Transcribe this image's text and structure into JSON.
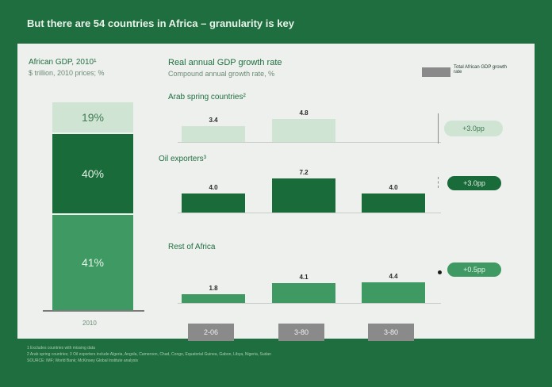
{
  "header": {
    "title": "But there are 54 countries in Africa – granularity is key"
  },
  "left_chart": {
    "title": "African GDP, 2010¹",
    "subtitle": "$ trillion, 2010 prices; %",
    "segments": [
      "19%",
      "40%",
      "41%"
    ],
    "year": "2010"
  },
  "right_chart": {
    "title": "Real annual GDP growth rate",
    "subtitle": "Compound annual growth rate, %",
    "legend_label": "Total African GDP growth rate",
    "panels": [
      {
        "label": "Arab spring countries²"
      },
      {
        "label": "Oil exporters³"
      },
      {
        "label": "Rest of Africa"
      }
    ],
    "year_labels": [
      "2-06",
      "3-80",
      "3-80"
    ]
  },
  "pills": [
    "+3.0pp",
    "+3.0pp",
    "+0.5pp"
  ],
  "chart_data": [
    {
      "type": "bar",
      "title": "African GDP, 2010¹",
      "categories": [
        "2010"
      ],
      "series": [
        {
          "values": [
            19
          ]
        },
        {
          "values": [
            40
          ]
        },
        {
          "values": [
            41
          ]
        }
      ],
      "stacked": true
    },
    {
      "type": "bar",
      "title": "Real annual GDP growth rate",
      "categories": [
        "2-06",
        "3-80",
        "3-80"
      ],
      "series": [
        {
          "name": "Arab spring countries²",
          "values": [
            3.4,
            4.8,
            null
          ]
        },
        {
          "name": "Oil exporters³",
          "values": [
            4.0,
            7.2,
            4.0
          ]
        },
        {
          "name": "Rest of Africa",
          "values": [
            1.8,
            4.1,
            4.4
          ]
        }
      ],
      "ylim": [
        0,
        8
      ]
    }
  ],
  "footnotes": [
    "1 Excludes countries with missing data",
    "2 Arab spring countries; 3 Oil exporters include Algeria, Angola, Cameroon, Chad, Congo, Equatorial Guinea, Gabon, Libya, Nigeria, Sudan",
    "SOURCE: IMF; World Bank; McKinsey Global Institute analysis"
  ],
  "colors": {
    "background": "#1f6e3f",
    "dark_green": "#196b3a",
    "mid_green": "#3e9a62",
    "light_green": "#cfe4d3",
    "grey": "#8a8a8a"
  }
}
